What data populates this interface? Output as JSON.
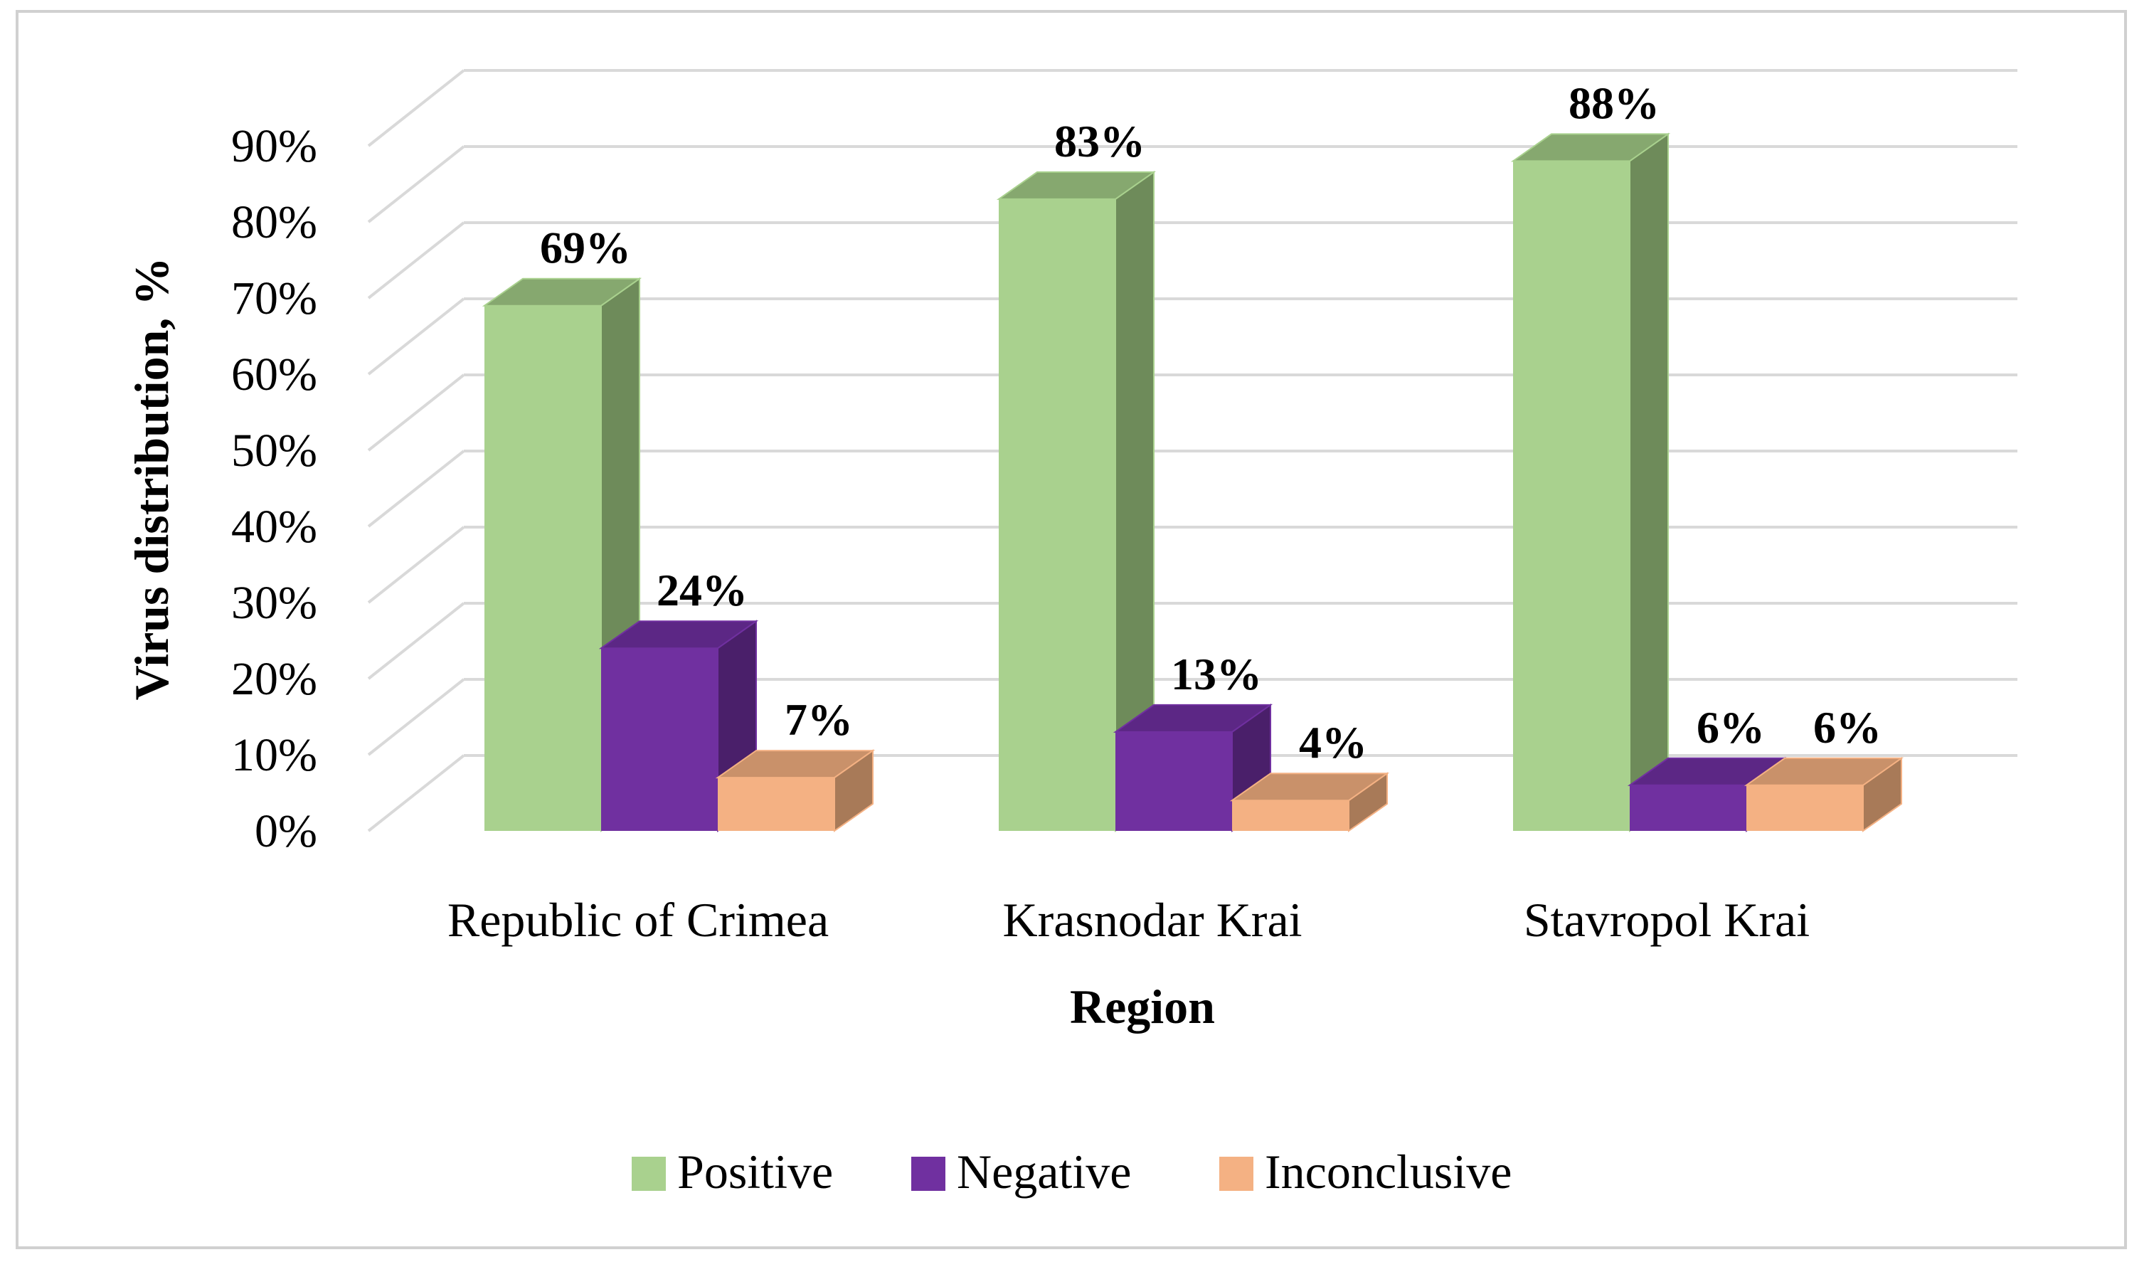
{
  "chart_data": {
    "type": "bar",
    "style": "3d-clustered-column",
    "categories": [
      "Republic of Crimea",
      "Krasnodar Krai",
      "Stavropol Krai"
    ],
    "series": [
      {
        "name": "Positive",
        "values": [
          69,
          83,
          88
        ],
        "color": "#a9d18e",
        "side_color": "#6e8b5a",
        "top_color": "#86a86f"
      },
      {
        "name": "Negative",
        "values": [
          24,
          13,
          6
        ],
        "color": "#7030a0",
        "side_color": "#4a1f6a",
        "top_color": "#5c2785"
      },
      {
        "name": "Inconclusive",
        "values": [
          7,
          4,
          6
        ],
        "color": "#f4b183",
        "side_color": "#a87a58",
        "top_color": "#c9916a"
      }
    ],
    "data_labels": [
      [
        "69%",
        "83%",
        "88%"
      ],
      [
        "24%",
        "13%",
        "6%"
      ],
      [
        "7%",
        "4%",
        "6%"
      ]
    ],
    "xlabel": "Region",
    "ylabel": "Virus distribution, %",
    "ylim": [
      0,
      90
    ],
    "yticks": [
      0,
      10,
      20,
      30,
      40,
      50,
      60,
      70,
      80,
      90
    ],
    "ytick_labels": [
      "0%",
      "10%",
      "20%",
      "30%",
      "40%",
      "50%",
      "60%",
      "70%",
      "80%",
      "90%"
    ],
    "grid": true,
    "legend_position": "bottom"
  }
}
